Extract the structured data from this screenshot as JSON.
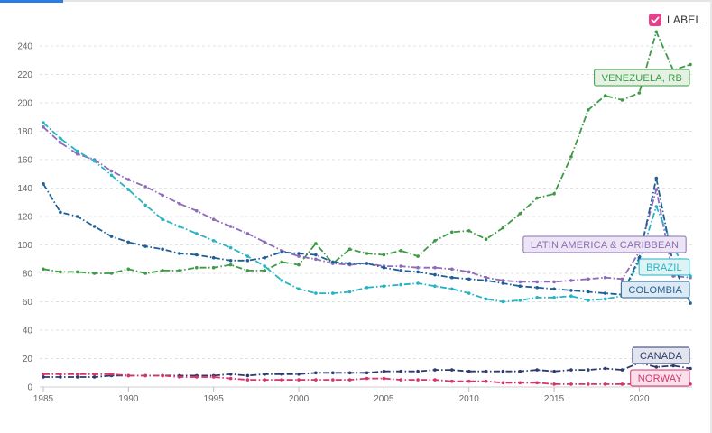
{
  "label_toggle": {
    "text": "LABEL",
    "checked": true,
    "check_color": "#e5408a"
  },
  "chart_data": {
    "type": "line",
    "title": "",
    "xlabel": "",
    "ylabel": "",
    "xlim": [
      1985,
      2023
    ],
    "ylim": [
      0,
      250
    ],
    "yticks": [
      0,
      20,
      40,
      60,
      80,
      100,
      120,
      140,
      160,
      180,
      200,
      220,
      240
    ],
    "xticks": [
      1985,
      1990,
      1995,
      2000,
      2005,
      2010,
      2015,
      2020
    ],
    "grid": true,
    "x": [
      1985,
      1986,
      1987,
      1988,
      1989,
      1990,
      1991,
      1992,
      1993,
      1994,
      1995,
      1996,
      1997,
      1998,
      1999,
      2000,
      2001,
      2002,
      2003,
      2004,
      2005,
      2006,
      2007,
      2008,
      2009,
      2010,
      2011,
      2012,
      2013,
      2014,
      2015,
      2016,
      2017,
      2018,
      2019,
      2020,
      2021,
      2022,
      2023
    ],
    "series": [
      {
        "name": "VENEZUELA, RB",
        "color": "#3d9b46",
        "fill": "#e4f1e3",
        "values": [
          83,
          81,
          81,
          80,
          80,
          83,
          80,
          82,
          82,
          84,
          84,
          86,
          82,
          82,
          88,
          86,
          101,
          87,
          97,
          94,
          93,
          96,
          92,
          103,
          109,
          110,
          104,
          112,
          122,
          133,
          136,
          162,
          195,
          205,
          202,
          207,
          250,
          223,
          227
        ]
      },
      {
        "name": "LATIN AMERICA & CARIBBEAN",
        "color": "#8e6bb8",
        "fill": "#ece6f4",
        "values": [
          183,
          172,
          164,
          160,
          152,
          146,
          141,
          135,
          129,
          124,
          118,
          113,
          108,
          102,
          96,
          92,
          90,
          87,
          86,
          87,
          85,
          85,
          84,
          84,
          83,
          81,
          77,
          75,
          74,
          74,
          74,
          75,
          76,
          77,
          76,
          95,
          139,
          78,
          77
        ]
      },
      {
        "name": "BRAZIL",
        "color": "#26b3c4",
        "fill": "#dff3f5",
        "values": [
          186,
          175,
          166,
          159,
          149,
          139,
          128,
          118,
          113,
          108,
          103,
          98,
          92,
          85,
          75,
          69,
          66,
          66,
          67,
          70,
          71,
          72,
          73,
          71,
          69,
          66,
          62,
          60,
          61,
          63,
          63,
          64,
          61,
          62,
          64,
          89,
          127,
          98,
          78
        ]
      },
      {
        "name": "COLOMBIA",
        "color": "#1f5f96",
        "fill": "#dde9f3",
        "values": [
          143,
          123,
          120,
          113,
          106,
          102,
          99,
          97,
          94,
          93,
          91,
          89,
          89,
          91,
          95,
          94,
          93,
          88,
          87,
          87,
          84,
          82,
          81,
          79,
          77,
          76,
          75,
          73,
          71,
          70,
          69,
          68,
          67,
          66,
          65,
          91,
          147,
          86,
          59
        ]
      },
      {
        "name": "CANADA",
        "color": "#2c3a6e",
        "fill": "#e2e4ee",
        "values": [
          7,
          7,
          7,
          7,
          8,
          8,
          8,
          8,
          8,
          8,
          8,
          9,
          8,
          9,
          9,
          9,
          10,
          10,
          10,
          10,
          11,
          11,
          11,
          12,
          12,
          11,
          11,
          11,
          11,
          12,
          11,
          12,
          12,
          13,
          12,
          17,
          14,
          15,
          13
        ]
      },
      {
        "name": "NORWAY",
        "color": "#d6336c",
        "fill": "#f9e0ea",
        "values": [
          9,
          9,
          9,
          9,
          9,
          8,
          8,
          8,
          7,
          7,
          7,
          6,
          5,
          5,
          5,
          5,
          5,
          5,
          5,
          6,
          6,
          5,
          5,
          5,
          4,
          4,
          4,
          3,
          3,
          3,
          2,
          2,
          2,
          2,
          2,
          2,
          2,
          2,
          2
        ]
      }
    ]
  }
}
